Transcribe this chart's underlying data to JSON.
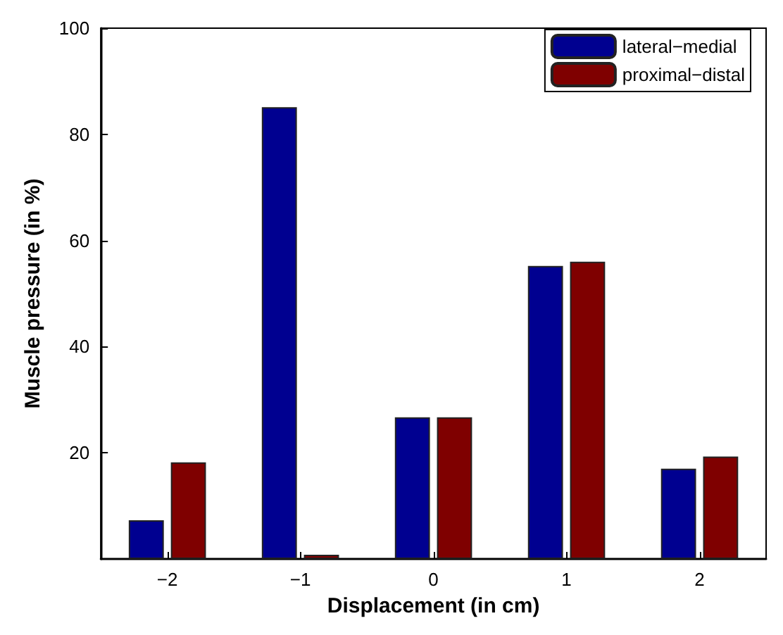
{
  "chart_data": {
    "type": "bar",
    "xlabel": "Displacement (in cm)",
    "ylabel": "Muscle pressure (in %)",
    "categories": [
      "−2",
      "−1",
      "0",
      "1",
      "2"
    ],
    "series": [
      {
        "name": "lateral−medial",
        "color": "#000090",
        "values": [
          7.3,
          85.1,
          26.7,
          55.2,
          17.0
        ]
      },
      {
        "name": "proximal−distal",
        "color": "#7f0000",
        "values": [
          18.2,
          0.8,
          26.7,
          56.0,
          19.3
        ]
      }
    ],
    "ylim": [
      0,
      100
    ],
    "yticks": [
      20,
      40,
      60,
      80,
      100
    ],
    "grid": false,
    "legend": "top right"
  }
}
